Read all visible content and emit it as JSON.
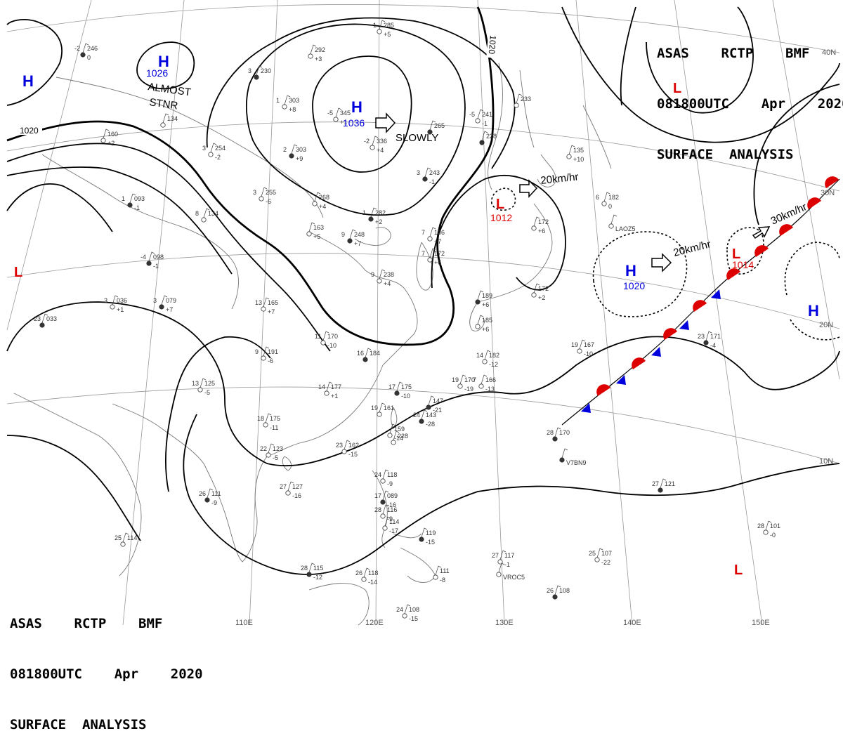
{
  "header_top": {
    "line1": "ASAS    RCTP    BMF",
    "line2": "081800UTC    Apr    2020",
    "line3": "SURFACE  ANALYSIS"
  },
  "header_bottom": {
    "line1": "ASAS    RCTP    BMF",
    "line2": "081800UTC    Apr    2020",
    "line3": "SURFACE  ANALYSIS"
  },
  "colors": {
    "high": "#0000dd",
    "low": "#dd0000",
    "warm_front": "#dd0000",
    "cold_front": "#0000dd",
    "coast": "#666666",
    "grid": "#888888",
    "isobar": "#000000"
  },
  "longitude_labels": [
    "110E",
    "120E",
    "130E",
    "140E",
    "150E"
  ],
  "latitude_labels": [
    "40N",
    "30N",
    "20N",
    "10N"
  ],
  "isobar_labels": [
    "1020",
    "1020"
  ],
  "pressure_systems": [
    {
      "type": "H",
      "value": "1026"
    },
    {
      "type": "H",
      "value": "1036"
    },
    {
      "type": "H",
      "value": ""
    },
    {
      "type": "L",
      "value": "1012"
    },
    {
      "type": "H",
      "value": "1020"
    },
    {
      "type": "L",
      "value": "1014"
    },
    {
      "type": "L",
      "value": ""
    },
    {
      "type": "H",
      "value": ""
    },
    {
      "type": "L",
      "value": ""
    },
    {
      "type": "L",
      "value": ""
    }
  ],
  "annotations": {
    "almost": "ALMOST",
    "stnr": "STNR",
    "slowly": "SLOWLY",
    "speed1": "20km/hr",
    "speed2": "20km/hr",
    "speed3": "30km/hr"
  },
  "stations": [
    {
      "t": "-2",
      "p": "246",
      "d": "0"
    },
    {
      "t": "-1",
      "p": "285",
      "d": "+5"
    },
    {
      "t": "",
      "p": "292",
      "d": "+3"
    },
    {
      "t": "3",
      "p": "230",
      "d": ""
    },
    {
      "t": "1",
      "p": "303",
      "d": "+8"
    },
    {
      "t": "-5",
      "p": "345",
      "d": "+1"
    },
    {
      "t": "2",
      "p": "303",
      "d": "+9"
    },
    {
      "t": "3",
      "p": "254",
      "d": "-2"
    },
    {
      "t": "-2",
      "p": "336",
      "d": "+4"
    },
    {
      "t": "",
      "p": "265",
      "d": ""
    },
    {
      "t": "-5",
      "p": "241",
      "d": "-1"
    },
    {
      "t": "",
      "p": "233",
      "d": ""
    },
    {
      "t": "",
      "p": "228",
      "d": ""
    },
    {
      "t": "",
      "p": "160",
      "d": "+2"
    },
    {
      "t": "",
      "p": "134",
      "d": ""
    },
    {
      "t": "3",
      "p": "243",
      "d": "-1"
    },
    {
      "t": "3",
      "p": "255",
      "d": "-6"
    },
    {
      "t": "",
      "p": "268",
      "d": "+4"
    },
    {
      "t": "1",
      "p": "282",
      "d": "+2"
    },
    {
      "t": "",
      "p": "135",
      "d": "+10"
    },
    {
      "t": "6",
      "p": "182",
      "d": "0"
    },
    {
      "t": "1",
      "p": "093",
      "d": "-1"
    },
    {
      "t": "8",
      "p": "134",
      "d": ""
    },
    {
      "t": "",
      "p": "163",
      "d": "+5"
    },
    {
      "t": "9",
      "p": "248",
      "d": "+7"
    },
    {
      "t": "7",
      "p": "186",
      "d": "+7"
    },
    {
      "t": "",
      "p": "172",
      "d": "+6"
    },
    {
      "t": "-4",
      "p": "098",
      "d": "-1"
    },
    {
      "t": "7",
      "p": "172",
      "d": "+6"
    },
    {
      "t": "9",
      "p": "238",
      "d": "+4"
    },
    {
      "t": "",
      "p": "189",
      "d": "+6"
    },
    {
      "t": "",
      "p": "172",
      "d": "+2"
    },
    {
      "t": "3",
      "p": "036",
      "d": "+1"
    },
    {
      "t": "3",
      "p": "079",
      "d": "+7"
    },
    {
      "t": "13",
      "p": "165",
      "d": "+7"
    },
    {
      "t": "",
      "p": "185",
      "d": "+6"
    },
    {
      "t": "23",
      "p": "033",
      "d": ""
    },
    {
      "t": "11",
      "p": "170",
      "d": "-10"
    },
    {
      "t": "9",
      "p": "191",
      "d": "-6"
    },
    {
      "t": "16",
      "p": "184",
      "d": ""
    },
    {
      "t": "14",
      "p": "182",
      "d": "-12"
    },
    {
      "t": "19",
      "p": "167",
      "d": "-10"
    },
    {
      "t": "23",
      "p": "171",
      "d": "-4"
    },
    {
      "t": "13",
      "p": "125",
      "d": "-5"
    },
    {
      "t": "14",
      "p": "177",
      "d": "+1"
    },
    {
      "t": "17",
      "p": "175",
      "d": "-10"
    },
    {
      "t": "19",
      "p": "170",
      "d": "-19"
    },
    {
      "t": "7",
      "p": "166",
      "d": "-13"
    },
    {
      "t": "",
      "p": "147",
      "d": "-21"
    },
    {
      "t": "18",
      "p": "175",
      "d": "-11"
    },
    {
      "t": "19",
      "p": "161",
      "d": ""
    },
    {
      "t": "24",
      "p": "143",
      "d": "-28"
    },
    {
      "t": "",
      "p": "159",
      "d": "-14"
    },
    {
      "t": "",
      "p": "228",
      "d": ""
    },
    {
      "t": "28",
      "p": "170",
      "d": ""
    },
    {
      "t": "23",
      "p": "162",
      "d": "-15"
    },
    {
      "t": "22",
      "p": "123",
      "d": "-5"
    },
    {
      "t": "26",
      "p": "111",
      "d": "-9"
    },
    {
      "t": "27",
      "p": "127",
      "d": "-16"
    },
    {
      "t": "24",
      "p": "118",
      "d": "-9"
    },
    {
      "t": "17",
      "p": "089",
      "d": "-16"
    },
    {
      "t": "28",
      "p": "116",
      "d": "-9"
    },
    {
      "t": "",
      "p": "114",
      "d": "-17"
    },
    {
      "t": "27",
      "p": "121",
      "d": ""
    },
    {
      "t": "28",
      "p": "101",
      "d": "-0"
    },
    {
      "t": "25",
      "p": "114",
      "d": ""
    },
    {
      "t": "",
      "p": "119",
      "d": "-15"
    },
    {
      "t": "27",
      "p": "117",
      "d": "-1"
    },
    {
      "t": "25",
      "p": "107",
      "d": "-22"
    },
    {
      "t": "28",
      "p": "115",
      "d": "-12"
    },
    {
      "t": "26",
      "p": "118",
      "d": "-14"
    },
    {
      "t": "",
      "p": "111",
      "d": "-8"
    },
    {
      "t": "26",
      "p": "108",
      "d": ""
    },
    {
      "t": "24",
      "p": "108",
      "d": "-15"
    },
    {
      "t": "",
      "p": "",
      "d": "LAOZ5"
    },
    {
      "t": "",
      "p": "",
      "d": "V7BN9"
    },
    {
      "t": "",
      "p": "",
      "d": "VROC5"
    }
  ]
}
